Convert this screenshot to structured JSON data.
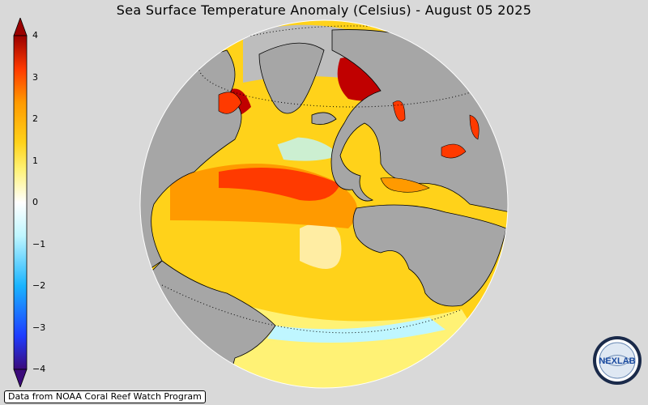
{
  "title": "Sea Surface Temperature Anomaly (Celsius) - August 05 2025",
  "colorbar": {
    "ticks": [
      "4",
      "3",
      "2",
      "1",
      "0",
      "−1",
      "−2",
      "−3",
      "−4"
    ],
    "range": [
      -4,
      4
    ],
    "colors": [
      "#3b0a7a",
      "#1e3cff",
      "#19b4ff",
      "#bff6ff",
      "#ffffff",
      "#fff275",
      "#ffd21a",
      "#ff9a00",
      "#ff3a00",
      "#9a0000"
    ]
  },
  "map": {
    "projection": "orthographic",
    "land_color": "#a6a6a6",
    "ocean_anomaly_colors": [
      "#ffd21a",
      "#ff9a00",
      "#ff3a00",
      "#c00000",
      "#bff6ff",
      "#ffffff"
    ]
  },
  "credit": "Data from NOAA Coral Reef Watch Program",
  "logo": {
    "text": "NEXLAB",
    "icon": "nexlab-globe-logo"
  }
}
